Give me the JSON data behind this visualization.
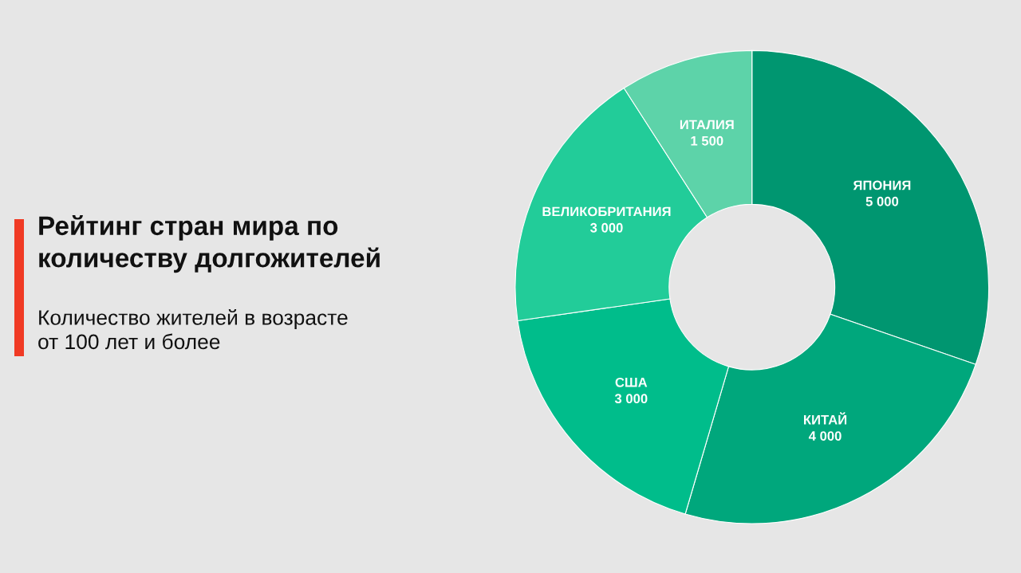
{
  "chart_data": {
    "type": "donut",
    "title": "Рейтинг стран мира по\nколичеству долгожителей",
    "subtitle": "Количество жителей в возрасте\nот 100 лет и более",
    "categories": [
      "ЯПОНИЯ",
      "КИТАЙ",
      "США",
      "ВЕЛИКОБРИТАНИЯ",
      "ИТАЛИЯ"
    ],
    "values": [
      5000,
      4000,
      3000,
      3000,
      1500
    ],
    "value_labels": [
      "5 000",
      "4 000",
      "3 000",
      "3 000",
      "1 500"
    ],
    "colors": [
      "#009670",
      "#00a77c",
      "#00bd8b",
      "#22cc99",
      "#5dd3a9"
    ]
  }
}
